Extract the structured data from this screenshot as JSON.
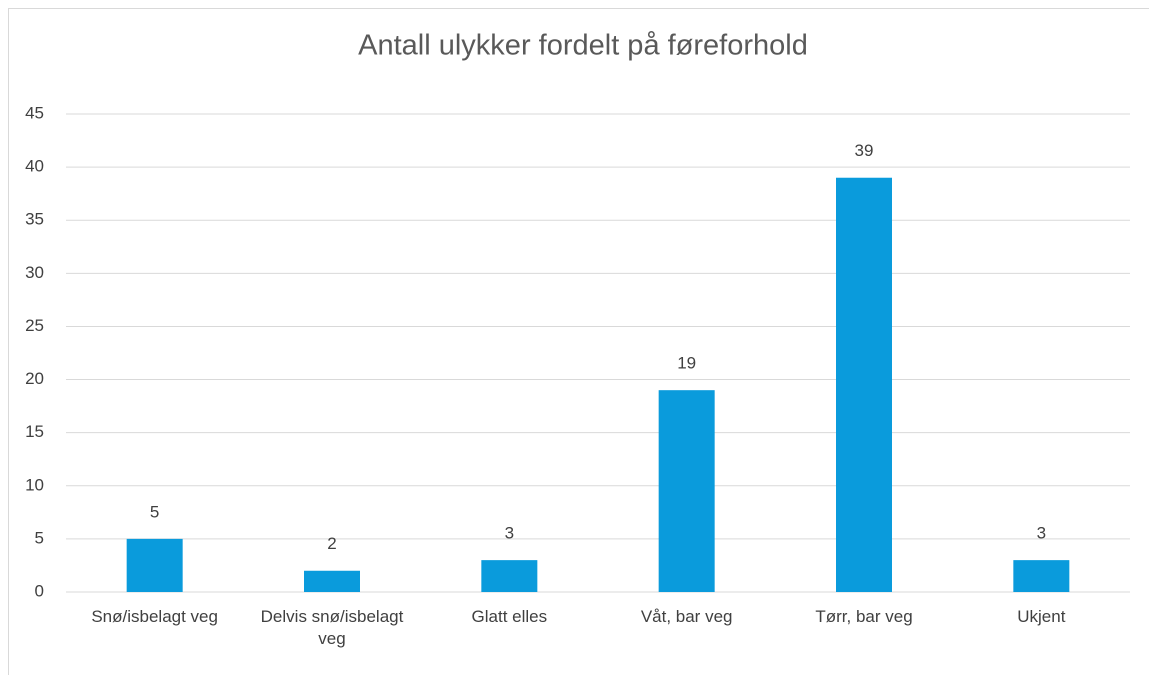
{
  "chart_data": {
    "type": "bar",
    "title": "Antall ulykker fordelt på føreforhold",
    "categories": [
      "Snø/isbelagt veg",
      "Delvis snø/isbelagt veg",
      "Glatt elles",
      "Våt, bar veg",
      "Tørr, bar veg",
      "Ukjent"
    ],
    "values": [
      5,
      2,
      3,
      19,
      39,
      3
    ],
    "color": "#0a9bdc",
    "ylim": [
      0,
      45
    ],
    "yticks": [
      0,
      5,
      10,
      15,
      20,
      25,
      30,
      35,
      40,
      45
    ],
    "grid": true
  }
}
